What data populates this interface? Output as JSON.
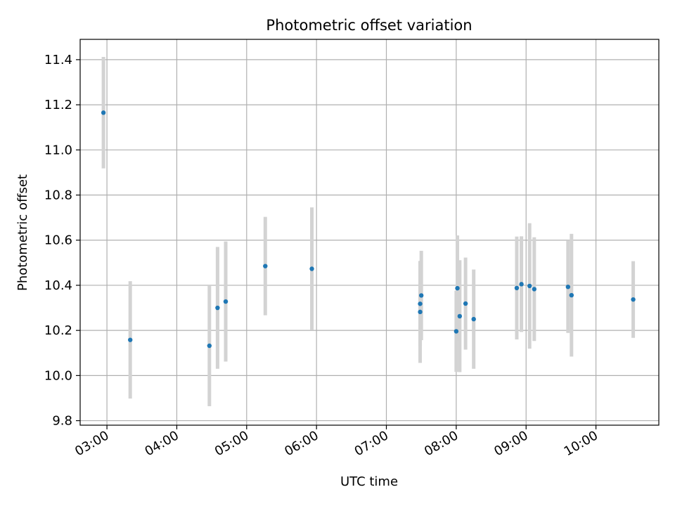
{
  "chart_data": {
    "type": "scatter",
    "title": "Photometric offset variation",
    "xlabel": "UTC time",
    "ylabel": "Photometric offset",
    "x_axis": {
      "type": "time",
      "range": [
        "02:37",
        "10:54"
      ],
      "ticks": [
        "03:00",
        "04:00",
        "05:00",
        "06:00",
        "07:00",
        "08:00",
        "09:00",
        "10:00"
      ]
    },
    "y_axis": {
      "range": [
        9.78,
        11.49
      ],
      "ticks": [
        "9.8",
        "10.0",
        "10.2",
        "10.4",
        "10.6",
        "10.8",
        "11.0",
        "11.2",
        "11.4"
      ]
    },
    "grid": true,
    "colors": {
      "points": "#1f77b4",
      "error_bars": "#d3d3d3",
      "grid": "#b0b0b0"
    },
    "series": [
      {
        "error_bars": "vertical",
        "points": [
          {
            "x": "02:57",
            "y": 11.165,
            "err": 0.247
          },
          {
            "x": "03:20",
            "y": 10.158,
            "err": 0.26
          },
          {
            "x": "04:28",
            "y": 10.132,
            "err": 0.268
          },
          {
            "x": "04:35",
            "y": 10.3,
            "err": 0.27
          },
          {
            "x": "04:42",
            "y": 10.328,
            "err": 0.266
          },
          {
            "x": "05:16",
            "y": 10.485,
            "err": 0.218
          },
          {
            "x": "05:56",
            "y": 10.473,
            "err": 0.272
          },
          {
            "x": "07:29",
            "y": 10.318,
            "err": 0.188
          },
          {
            "x": "07:29",
            "y": 10.282,
            "err": 0.226
          },
          {
            "x": "07:30",
            "y": 10.355,
            "err": 0.198
          },
          {
            "x": "08:00",
            "y": 10.196,
            "err": 0.18
          },
          {
            "x": "08:01",
            "y": 10.387,
            "err": 0.234
          },
          {
            "x": "08:03",
            "y": 10.263,
            "err": 0.248
          },
          {
            "x": "08:08",
            "y": 10.319,
            "err": 0.204
          },
          {
            "x": "08:15",
            "y": 10.25,
            "err": 0.22
          },
          {
            "x": "08:52",
            "y": 10.388,
            "err": 0.228
          },
          {
            "x": "08:56",
            "y": 10.405,
            "err": 0.212
          },
          {
            "x": "09:03",
            "y": 10.397,
            "err": 0.278
          },
          {
            "x": "09:07",
            "y": 10.383,
            "err": 0.23
          },
          {
            "x": "09:36",
            "y": 10.393,
            "err": 0.204
          },
          {
            "x": "09:39",
            "y": 10.356,
            "err": 0.272
          },
          {
            "x": "10:32",
            "y": 10.337,
            "err": 0.17
          }
        ]
      }
    ]
  }
}
